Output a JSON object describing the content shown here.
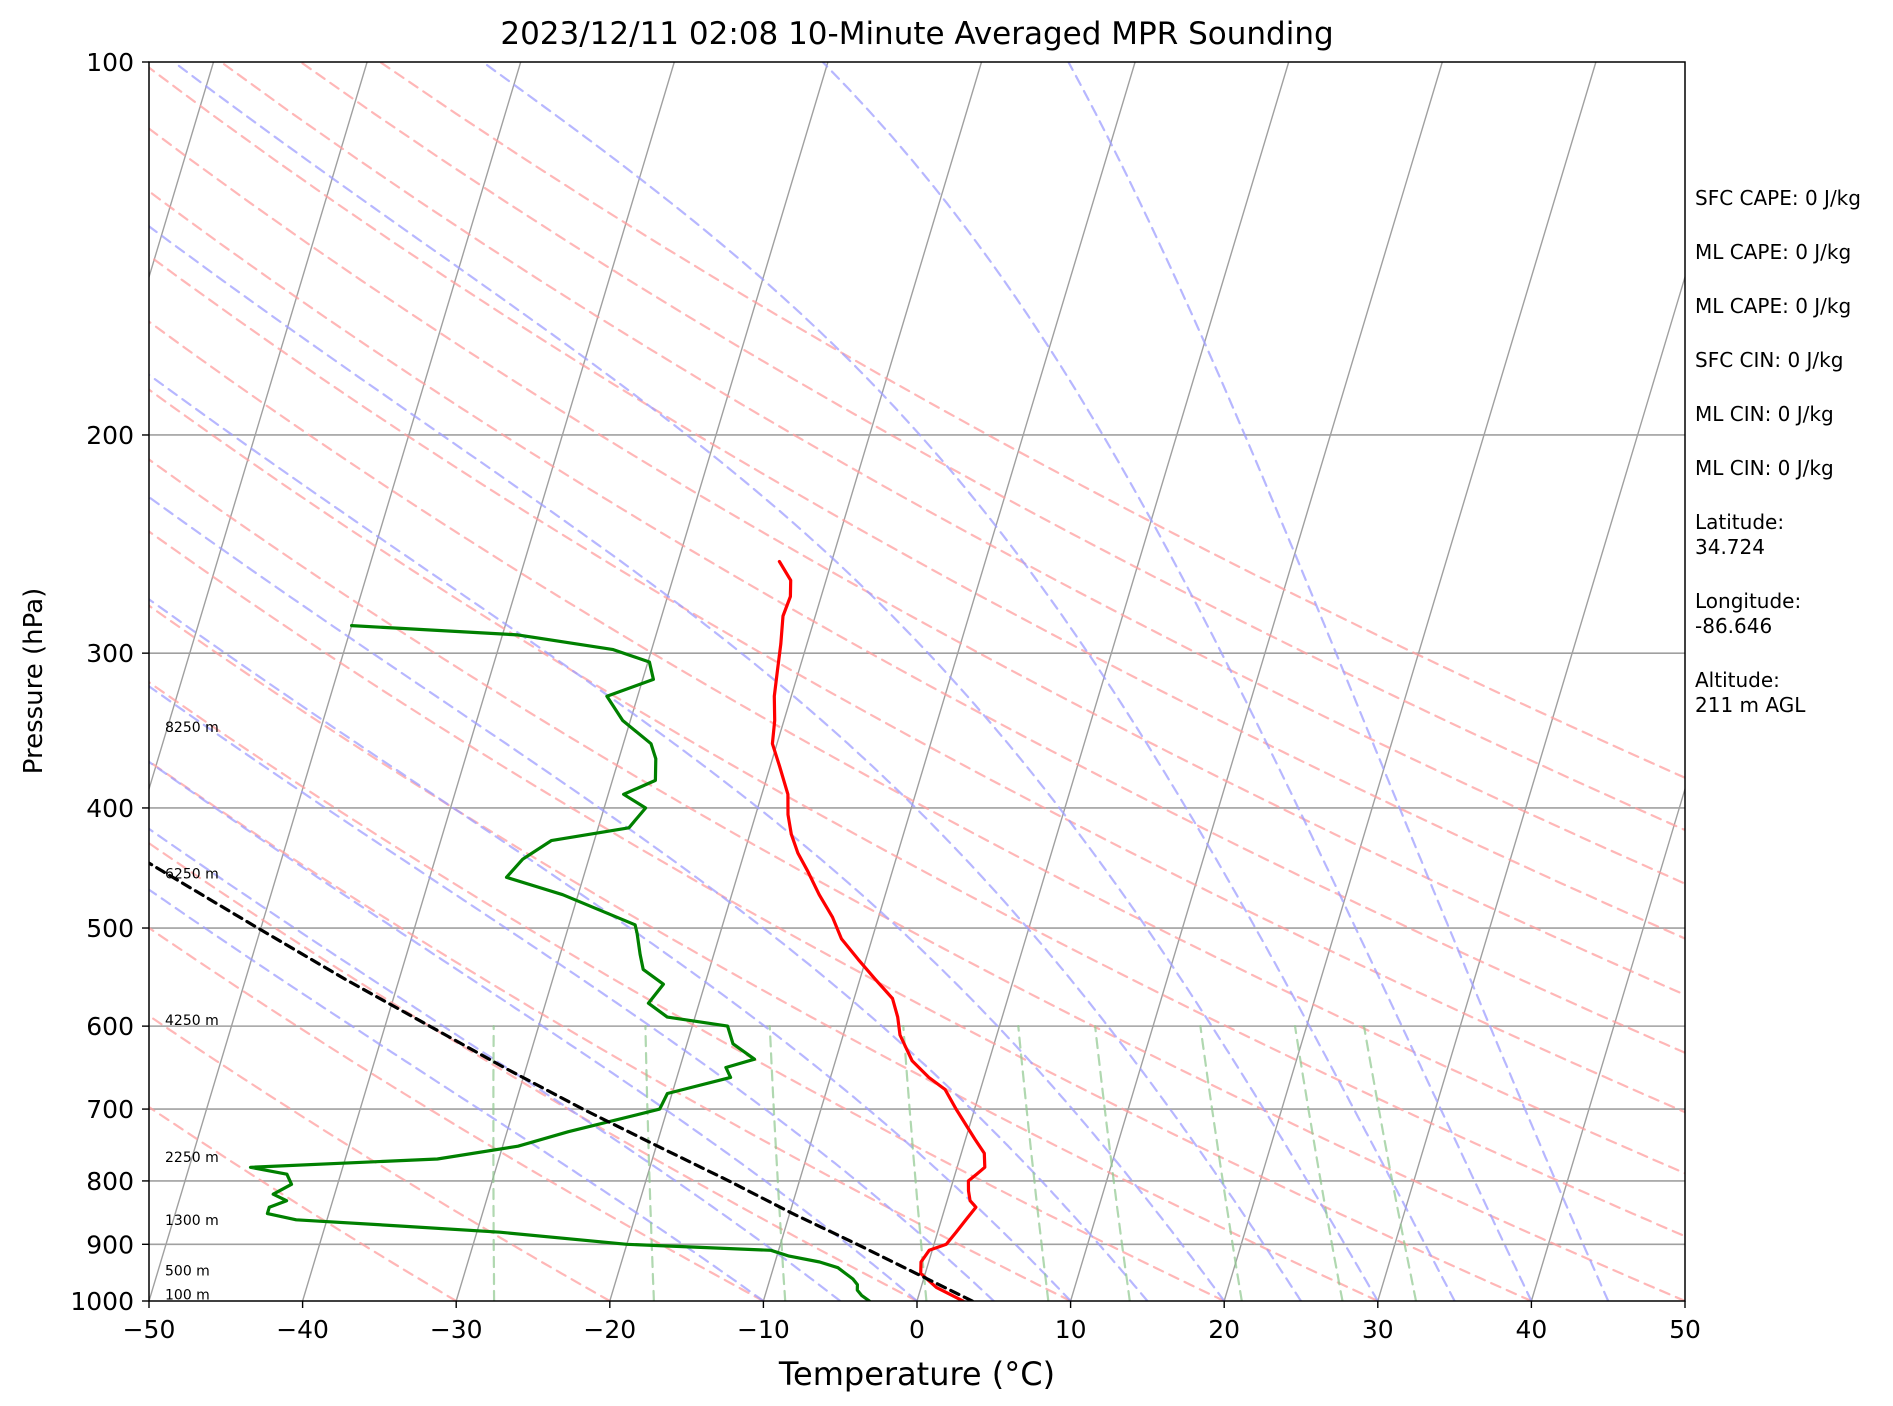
{
  "chart_data": {
    "type": "line",
    "subtype": "skew-t log-p",
    "title": "2023/12/11 02:08 10-Minute Averaged MPR Sounding",
    "xlabel": "Temperature (°C)",
    "ylabel": "Pressure (hPa)",
    "xlim": [
      -50,
      50
    ],
    "ylim": [
      1000,
      100
    ],
    "y_scale": "log",
    "x_ticks": [
      -50,
      -40,
      -30,
      -20,
      -10,
      0,
      10,
      20,
      30,
      40,
      50
    ],
    "x_tick_labels": [
      "−50",
      "−40",
      "−30",
      "−20",
      "−10",
      "0",
      "10",
      "20",
      "30",
      "40",
      "50"
    ],
    "y_ticks": [
      1000,
      900,
      800,
      700,
      600,
      500,
      400,
      300,
      200,
      100
    ],
    "y_tick_labels": [
      "1000",
      "900",
      "800",
      "700",
      "600",
      "500",
      "400",
      "300",
      "200",
      "100"
    ],
    "grid": true,
    "skew_reference": "isotherms tilted right with height",
    "colors": {
      "temperature": "#ff0000",
      "dewpoint": "#008000",
      "parcel": "#000000",
      "isotherm": "#a0a0a0",
      "dry_adiabat": "#ff9f9f",
      "moist_adiabat": "#9f9fff",
      "mixing_ratio": "#8fc88f",
      "grid": "#a0a0a0"
    },
    "series": [
      {
        "role": "temperature",
        "points": [
          [
            1000,
            3.0
          ],
          [
            990,
            2.2
          ],
          [
            975,
            1.0
          ],
          [
            950,
            -0.3
          ],
          [
            930,
            -0.5
          ],
          [
            910,
            -0.2
          ],
          [
            900,
            0.8
          ],
          [
            880,
            1.2
          ],
          [
            860,
            1.6
          ],
          [
            840,
            2.0
          ],
          [
            830,
            1.5
          ],
          [
            815,
            1.2
          ],
          [
            800,
            1.0
          ],
          [
            790,
            1.4
          ],
          [
            780,
            1.8
          ],
          [
            760,
            1.5
          ],
          [
            740,
            0.6
          ],
          [
            700,
            -1.2
          ],
          [
            675,
            -2.3
          ],
          [
            660,
            -3.6
          ],
          [
            640,
            -5.0
          ],
          [
            610,
            -6.3
          ],
          [
            590,
            -6.8
          ],
          [
            570,
            -7.5
          ],
          [
            550,
            -9.0
          ],
          [
            530,
            -10.5
          ],
          [
            510,
            -12.0
          ],
          [
            490,
            -13.0
          ],
          [
            470,
            -14.3
          ],
          [
            450,
            -15.5
          ],
          [
            435,
            -16.5
          ],
          [
            420,
            -17.3
          ],
          [
            405,
            -17.9
          ],
          [
            390,
            -18.3
          ],
          [
            370,
            -19.4
          ],
          [
            355,
            -20.3
          ],
          [
            340,
            -20.6
          ],
          [
            325,
            -21.1
          ],
          [
            310,
            -21.4
          ],
          [
            295,
            -21.7
          ],
          [
            280,
            -22.1
          ],
          [
            270,
            -22.0
          ],
          [
            262,
            -22.3
          ],
          [
            253,
            -23.4
          ]
        ]
      },
      {
        "role": "dewpoint",
        "points": [
          [
            1000,
            -3.1
          ],
          [
            990,
            -3.7
          ],
          [
            980,
            -4.1
          ],
          [
            970,
            -4.2
          ],
          [
            960,
            -4.6
          ],
          [
            950,
            -5.2
          ],
          [
            940,
            -5.8
          ],
          [
            930,
            -7.1
          ],
          [
            920,
            -9.2
          ],
          [
            910,
            -10.5
          ],
          [
            900,
            -20.0
          ],
          [
            880,
            -28.5
          ],
          [
            870,
            -35.0
          ],
          [
            860,
            -42.0
          ],
          [
            850,
            -44.0
          ],
          [
            840,
            -44.0
          ],
          [
            830,
            -43.0
          ],
          [
            820,
            -44.0
          ],
          [
            805,
            -43.0
          ],
          [
            790,
            -43.5
          ],
          [
            780,
            -46.0
          ],
          [
            768,
            -34.0
          ],
          [
            750,
            -29.0
          ],
          [
            730,
            -26.0
          ],
          [
            700,
            -20.5
          ],
          [
            680,
            -20.3
          ],
          [
            660,
            -16.5
          ],
          [
            648,
            -17.0
          ],
          [
            638,
            -15.3
          ],
          [
            620,
            -17.0
          ],
          [
            600,
            -17.7
          ],
          [
            590,
            -21.8
          ],
          [
            575,
            -23.3
          ],
          [
            555,
            -22.7
          ],
          [
            540,
            -24.3
          ],
          [
            525,
            -24.8
          ],
          [
            505,
            -25.4
          ],
          [
            497,
            -25.7
          ],
          [
            470,
            -31.0
          ],
          [
            455,
            -35.0
          ],
          [
            440,
            -34.3
          ],
          [
            425,
            -32.8
          ],
          [
            415,
            -28.0
          ],
          [
            400,
            -27.3
          ],
          [
            390,
            -29.0
          ],
          [
            380,
            -27.2
          ],
          [
            365,
            -27.6
          ],
          [
            355,
            -28.2
          ],
          [
            340,
            -30.5
          ],
          [
            325,
            -32.0
          ],
          [
            315,
            -29.3
          ],
          [
            305,
            -29.9
          ],
          [
            298,
            -32.5
          ],
          [
            290,
            -39.0
          ],
          [
            285,
            -50.0
          ]
        ]
      },
      {
        "role": "parcel",
        "style": "dashed",
        "points": [
          [
            1000,
            3.6
          ],
          [
            950,
            -0.6
          ],
          [
            900,
            -5.0
          ],
          [
            850,
            -9.8
          ],
          [
            800,
            -14.6
          ],
          [
            750,
            -19.9
          ],
          [
            700,
            -25.5
          ],
          [
            650,
            -31.2
          ],
          [
            600,
            -37.1
          ],
          [
            550,
            -43.5
          ],
          [
            500,
            -50.2
          ],
          [
            450,
            -57.5
          ],
          [
            400,
            -65.6
          ],
          [
            350,
            -74.7
          ],
          [
            300,
            -85.0
          ],
          [
            275,
            -90.6
          ]
        ]
      }
    ],
    "height_labels": [
      {
        "text": "100 m",
        "pressure": 988
      },
      {
        "text": "500 m",
        "pressure": 945
      },
      {
        "text": "1300 m",
        "pressure": 860
      },
      {
        "text": "2250 m",
        "pressure": 765
      },
      {
        "text": "4250 m",
        "pressure": 593
      },
      {
        "text": "6250 m",
        "pressure": 452
      },
      {
        "text": "8250 m",
        "pressure": 344
      }
    ],
    "background_lines": {
      "isotherms": [
        -150,
        -140,
        -130,
        -120,
        -110,
        -100,
        -90,
        -80,
        -70,
        -60,
        -50,
        -40,
        -30,
        -20,
        -10,
        0,
        10,
        20,
        30,
        40,
        50
      ],
      "dry_adiabats_theta_c": [
        -30,
        -20,
        -10,
        0,
        10,
        20,
        30,
        40,
        50,
        60,
        70,
        80,
        90,
        100,
        110,
        120,
        130,
        140
      ],
      "moist_adiabats_start_c": [
        -10,
        -5,
        0,
        5,
        10,
        15,
        20,
        25,
        30,
        35,
        40,
        45
      ],
      "mixing_ratios_gkg": [
        0.4,
        1,
        2,
        4,
        7,
        10,
        16,
        24,
        32
      ]
    }
  },
  "side_panel": {
    "items": [
      "SFC CAPE: 0 J/kg",
      "ML CAPE: 0 J/kg",
      "ML CAPE: 0 J/kg",
      "SFC CIN: 0 J/kg",
      "ML CIN: 0 J/kg",
      "ML CIN: 0 J/kg",
      "Latitude:\n34.724",
      "Longitude:\n-86.646",
      "Altitude:\n211 m AGL"
    ]
  }
}
